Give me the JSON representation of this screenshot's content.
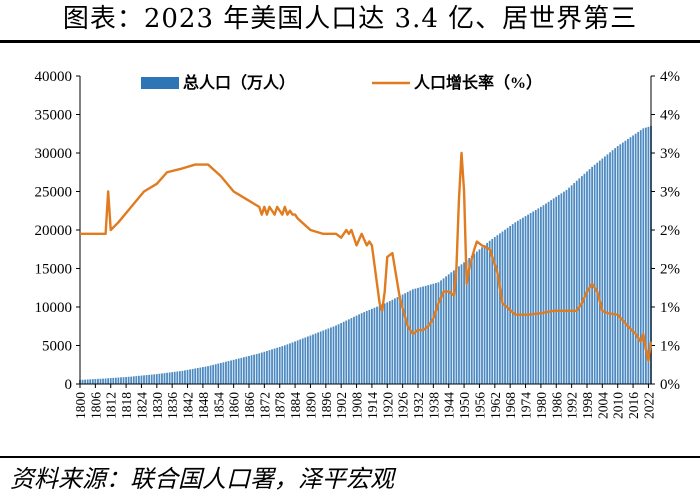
{
  "page": {
    "title": "图表：2023 年美国人口达 3.4 亿、居世界第三",
    "source": "资料来源：联合国人口署，泽平宏观"
  },
  "colors": {
    "bars": "#2e75b6",
    "line": "#e07b1f"
  },
  "chart_data": {
    "type": "bar+line",
    "title": "",
    "legend": [
      {
        "name": "总人口（万人）",
        "type": "bar",
        "axis": "left"
      },
      {
        "name": "人口增长率（%）",
        "type": "line",
        "axis": "right"
      }
    ],
    "legend_position": "top-center",
    "x": {
      "range": [
        1800,
        2023
      ],
      "tick_labels": [
        "1800",
        "1806",
        "1812",
        "1818",
        "1824",
        "1830",
        "1836",
        "1842",
        "1848",
        "1854",
        "1860",
        "1866",
        "1872",
        "1878",
        "1884",
        "1890",
        "1896",
        "1902",
        "1908",
        "1914",
        "1920",
        "1926",
        "1932",
        "1938",
        "1944",
        "1950",
        "1956",
        "1962",
        "1968",
        "1974",
        "1980",
        "1986",
        "1992",
        "1998",
        "2004",
        "2010",
        "2016",
        "2022"
      ]
    },
    "y_left": {
      "ylim": [
        0,
        40000
      ],
      "tick_labels": [
        "0",
        "5000",
        "10000",
        "15000",
        "20000",
        "25000",
        "30000",
        "35000",
        "40000"
      ]
    },
    "y_right": {
      "ylim": [
        0,
        4
      ],
      "tick_labels": [
        "0%",
        "1%",
        "1%",
        "2%",
        "2%",
        "3%",
        "3%",
        "4%",
        "4%"
      ]
    },
    "grid": false,
    "population_series": {
      "name": "总人口（万人）",
      "x": [
        1800,
        1810,
        1820,
        1830,
        1840,
        1850,
        1860,
        1870,
        1880,
        1890,
        1900,
        1910,
        1920,
        1930,
        1940,
        1950,
        1960,
        1970,
        1980,
        1990,
        2000,
        2010,
        2020,
        2023
      ],
      "values": [
        530,
        720,
        960,
        1290,
        1710,
        2320,
        3140,
        3980,
        5020,
        6300,
        7600,
        9200,
        10600,
        12300,
        13200,
        15800,
        18600,
        21000,
        23000,
        25200,
        28200,
        30900,
        33200,
        33500
      ]
    },
    "growth_series": {
      "name": "人口增长率（%）",
      "x": [
        1800,
        1810,
        1811,
        1812,
        1815,
        1820,
        1825,
        1830,
        1834,
        1840,
        1845,
        1850,
        1855,
        1860,
        1865,
        1870,
        1871,
        1872,
        1873,
        1874,
        1875,
        1876,
        1877,
        1878,
        1879,
        1880,
        1881,
        1882,
        1883,
        1884,
        1885,
        1890,
        1895,
        1900,
        1902,
        1904,
        1905,
        1906,
        1908,
        1910,
        1912,
        1913,
        1914,
        1916,
        1917,
        1918,
        1919,
        1920,
        1922,
        1924,
        1925,
        1928,
        1930,
        1932,
        1934,
        1936,
        1938,
        1940,
        1942,
        1944,
        1946,
        1947,
        1948,
        1949,
        1950,
        1951,
        1952,
        1954,
        1955,
        1957,
        1960,
        1963,
        1965,
        1970,
        1975,
        1980,
        1985,
        1990,
        1994,
        1996,
        1998,
        2000,
        2002,
        2004,
        2006,
        2010,
        2014,
        2017,
        2018,
        2019,
        2020,
        2021,
        2022,
        2023
      ],
      "values": [
        1.95,
        1.95,
        2.5,
        2.0,
        2.1,
        2.3,
        2.5,
        2.6,
        2.75,
        2.8,
        2.85,
        2.85,
        2.7,
        2.5,
        2.4,
        2.3,
        2.2,
        2.3,
        2.2,
        2.3,
        2.25,
        2.2,
        2.3,
        2.25,
        2.2,
        2.3,
        2.2,
        2.25,
        2.2,
        2.2,
        2.15,
        2.0,
        1.95,
        1.95,
        1.9,
        2.0,
        1.95,
        2.0,
        1.8,
        1.95,
        1.8,
        1.85,
        1.8,
        1.3,
        1.05,
        0.95,
        1.2,
        1.65,
        1.7,
        1.3,
        1.1,
        0.75,
        0.65,
        0.7,
        0.7,
        0.75,
        0.85,
        1.05,
        1.2,
        1.2,
        1.15,
        1.5,
        2.4,
        3.0,
        2.5,
        1.3,
        1.5,
        1.75,
        1.85,
        1.8,
        1.75,
        1.45,
        1.05,
        0.9,
        0.9,
        0.92,
        0.95,
        0.95,
        0.95,
        1.05,
        1.2,
        1.3,
        1.2,
        0.95,
        0.92,
        0.9,
        0.75,
        0.65,
        0.6,
        0.55,
        0.65,
        0.45,
        0.3,
        0.55
      ]
    }
  }
}
